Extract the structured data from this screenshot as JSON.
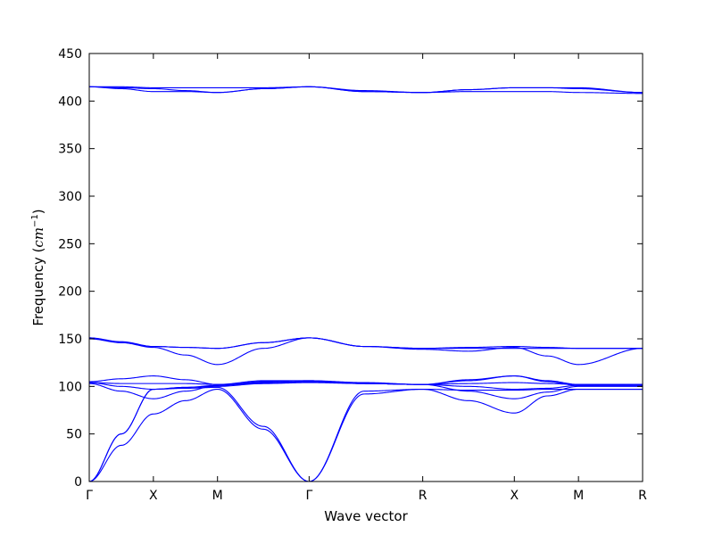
{
  "chart_data": {
    "type": "line",
    "xlabel": "Wave vector",
    "ylabel_text": "Frequency (",
    "ylabel_math": "cm",
    "ylabel_sup": "−1",
    "ylabel_close": ")",
    "ylim": [
      0,
      450
    ],
    "yticks": [
      0,
      50,
      100,
      150,
      200,
      250,
      300,
      350,
      400,
      450
    ],
    "xticks": [
      {
        "label": "Γ",
        "pos": 0.0
      },
      {
        "label": "X",
        "pos": 0.7
      },
      {
        "label": "M",
        "pos": 1.4
      },
      {
        "label": "Γ",
        "pos": 2.4
      },
      {
        "label": "R",
        "pos": 3.64
      },
      {
        "label": "X",
        "pos": 4.64
      },
      {
        "label": "M",
        "pos": 5.34
      },
      {
        "label": "R",
        "pos": 6.04
      }
    ],
    "xlim": [
      0,
      6.04
    ],
    "grid": false,
    "line_color": "#0000ff",
    "segments": [
      [
        0.0,
        0.7
      ],
      [
        0.7,
        1.4
      ],
      [
        1.4,
        2.4
      ],
      [
        2.4,
        3.64
      ],
      [
        3.64,
        4.64
      ],
      [
        4.64,
        5.34
      ],
      [
        5.34,
        6.04
      ]
    ],
    "series": [
      {
        "values": [
          [
            0,
            0
          ],
          [
            0.35,
            38
          ],
          [
            0.7,
            71
          ],
          [
            1.05,
            85
          ],
          [
            1.4,
            97
          ],
          [
            1.9,
            55
          ],
          [
            2.4,
            0
          ],
          [
            3.0,
            92
          ],
          [
            3.64,
            97
          ],
          [
            4.14,
            85
          ],
          [
            4.64,
            72
          ],
          [
            5.0,
            90
          ],
          [
            5.34,
            97
          ],
          [
            6.04,
            97
          ]
        ]
      },
      {
        "values": [
          [
            0,
            0
          ],
          [
            0.35,
            50
          ],
          [
            0.7,
            97
          ],
          [
            1.05,
            98
          ],
          [
            1.4,
            99
          ],
          [
            1.9,
            58
          ],
          [
            2.4,
            0
          ],
          [
            3.0,
            95
          ],
          [
            3.64,
            97
          ],
          [
            4.14,
            96
          ],
          [
            4.64,
            96
          ],
          [
            5.0,
            97
          ],
          [
            5.34,
            97
          ],
          [
            6.04,
            97
          ]
        ]
      },
      {
        "values": [
          [
            0,
            0
          ],
          [
            0.35,
            50
          ],
          [
            0.7,
            97
          ],
          [
            1.05,
            99
          ],
          [
            1.4,
            100
          ],
          [
            1.9,
            103
          ],
          [
            2.4,
            105
          ],
          [
            3.0,
            103
          ],
          [
            3.64,
            102
          ],
          [
            4.14,
            95
          ],
          [
            4.64,
            87
          ],
          [
            5.0,
            94
          ],
          [
            5.34,
            100
          ],
          [
            6.04,
            100
          ]
        ]
      },
      {
        "values": [
          [
            0,
            103
          ],
          [
            0.35,
            95
          ],
          [
            0.7,
            87
          ],
          [
            1.05,
            95
          ],
          [
            1.4,
            101
          ],
          [
            1.9,
            104
          ],
          [
            2.4,
            105
          ],
          [
            3.0,
            103
          ],
          [
            3.64,
            102
          ],
          [
            4.14,
            100
          ],
          [
            4.64,
            97
          ],
          [
            5.0,
            98
          ],
          [
            5.34,
            101
          ],
          [
            6.04,
            102
          ]
        ]
      },
      {
        "values": [
          [
            0,
            104
          ],
          [
            0.35,
            100
          ],
          [
            0.7,
            97
          ],
          [
            1.05,
            99
          ],
          [
            1.4,
            101
          ],
          [
            1.9,
            105
          ],
          [
            2.4,
            106
          ],
          [
            3.0,
            103
          ],
          [
            3.64,
            102
          ],
          [
            4.14,
            103
          ],
          [
            4.64,
            104
          ],
          [
            5.0,
            103
          ],
          [
            5.34,
            102
          ],
          [
            6.04,
            102
          ]
        ]
      },
      {
        "values": [
          [
            0,
            104
          ],
          [
            0.35,
            103
          ],
          [
            0.7,
            103
          ],
          [
            1.05,
            103
          ],
          [
            1.4,
            102
          ],
          [
            1.9,
            106
          ],
          [
            2.4,
            106
          ],
          [
            3.0,
            104
          ],
          [
            3.64,
            102
          ],
          [
            4.14,
            106
          ],
          [
            4.64,
            111
          ],
          [
            5.0,
            106
          ],
          [
            5.34,
            102
          ],
          [
            6.04,
            102
          ]
        ]
      },
      {
        "values": [
          [
            0,
            105
          ],
          [
            0.35,
            108
          ],
          [
            0.7,
            111
          ],
          [
            1.05,
            107
          ],
          [
            1.4,
            102
          ],
          [
            1.9,
            103
          ],
          [
            2.4,
            104
          ],
          [
            3.0,
            103
          ],
          [
            3.64,
            102
          ],
          [
            4.14,
            107
          ],
          [
            4.64,
            111
          ],
          [
            5.0,
            105
          ],
          [
            5.34,
            101
          ],
          [
            6.04,
            101
          ]
        ]
      },
      {
        "values": [
          [
            0,
            150
          ],
          [
            0.35,
            146
          ],
          [
            0.7,
            141
          ],
          [
            1.05,
            133
          ],
          [
            1.4,
            123
          ],
          [
            1.9,
            140
          ],
          [
            2.4,
            151
          ],
          [
            3.0,
            142
          ],
          [
            3.64,
            139
          ],
          [
            4.14,
            137
          ],
          [
            4.64,
            141
          ],
          [
            5.0,
            132
          ],
          [
            5.34,
            123
          ],
          [
            6.04,
            140
          ]
        ]
      },
      {
        "values": [
          [
            0,
            151
          ],
          [
            0.35,
            146
          ],
          [
            0.7,
            142
          ],
          [
            1.05,
            141
          ],
          [
            1.4,
            140
          ],
          [
            1.9,
            146
          ],
          [
            2.4,
            151
          ],
          [
            3.0,
            142
          ],
          [
            3.64,
            140
          ],
          [
            4.14,
            141
          ],
          [
            4.64,
            142
          ],
          [
            5.0,
            141
          ],
          [
            5.34,
            140
          ],
          [
            6.04,
            140
          ]
        ]
      },
      {
        "values": [
          [
            0,
            151
          ],
          [
            0.35,
            147
          ],
          [
            0.7,
            142
          ],
          [
            1.05,
            141
          ],
          [
            1.4,
            140
          ],
          [
            1.9,
            146
          ],
          [
            2.4,
            151
          ],
          [
            3.0,
            142
          ],
          [
            3.64,
            140
          ],
          [
            4.14,
            140
          ],
          [
            4.64,
            140
          ],
          [
            5.0,
            140
          ],
          [
            5.34,
            140
          ],
          [
            6.04,
            140
          ]
        ]
      },
      {
        "values": [
          [
            0,
            415
          ],
          [
            0.35,
            413
          ],
          [
            0.7,
            410
          ],
          [
            1.05,
            410
          ],
          [
            1.4,
            409
          ],
          [
            1.9,
            413
          ],
          [
            2.4,
            415
          ],
          [
            3.0,
            410
          ],
          [
            3.64,
            409
          ],
          [
            4.14,
            410
          ],
          [
            4.64,
            410
          ],
          [
            5.0,
            410
          ],
          [
            5.34,
            409
          ],
          [
            6.04,
            408
          ]
        ]
      },
      {
        "values": [
          [
            0,
            415
          ],
          [
            0.35,
            414
          ],
          [
            0.7,
            413
          ],
          [
            1.05,
            411
          ],
          [
            1.4,
            409
          ],
          [
            1.9,
            413
          ],
          [
            2.4,
            415
          ],
          [
            3.0,
            410
          ],
          [
            3.64,
            409
          ],
          [
            4.14,
            412
          ],
          [
            4.64,
            414
          ],
          [
            5.0,
            414
          ],
          [
            5.34,
            413
          ],
          [
            6.04,
            409
          ]
        ]
      },
      {
        "values": [
          [
            0,
            415
          ],
          [
            0.35,
            415
          ],
          [
            0.7,
            414
          ],
          [
            1.05,
            414
          ],
          [
            1.4,
            414
          ],
          [
            1.9,
            414
          ],
          [
            2.4,
            415
          ],
          [
            3.0,
            411
          ],
          [
            3.64,
            409
          ],
          [
            4.14,
            412
          ],
          [
            4.64,
            414
          ],
          [
            5.0,
            414
          ],
          [
            5.34,
            414
          ],
          [
            6.04,
            409
          ]
        ]
      }
    ]
  }
}
